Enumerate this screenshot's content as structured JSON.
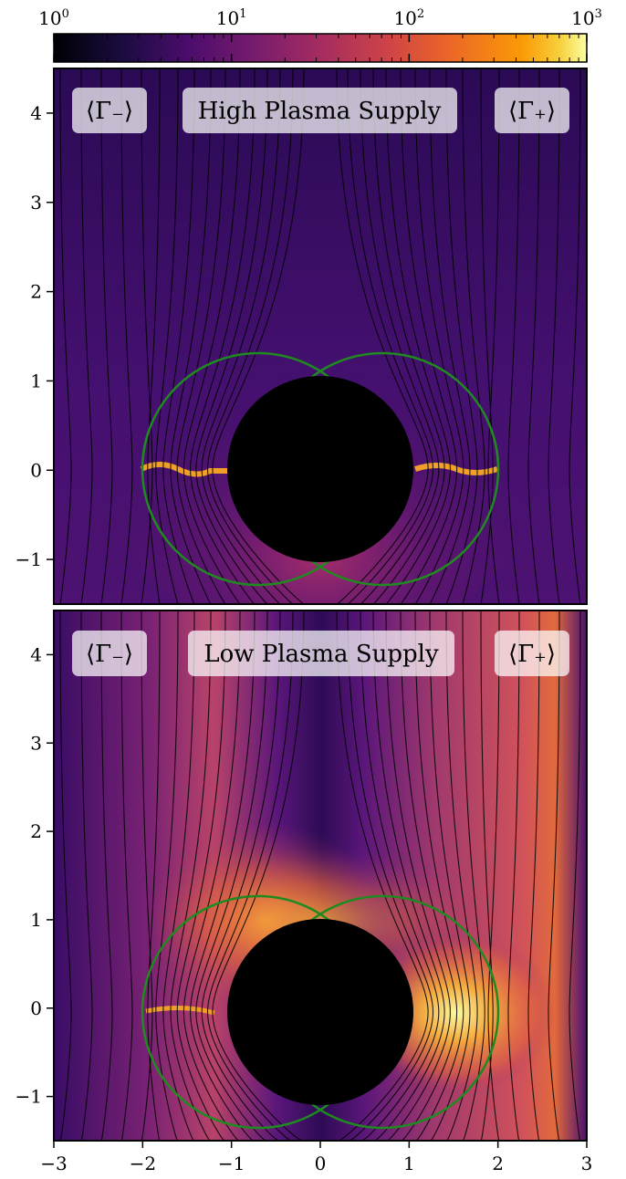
{
  "chart_data": [
    {
      "type": "colorbar",
      "scale": "log",
      "range": [
        1,
        1000
      ],
      "colormap": "inferno",
      "tick_labels": [
        {
          "base": "10",
          "exp": "0",
          "value": 1
        },
        {
          "base": "10",
          "exp": "1",
          "value": 10
        },
        {
          "base": "10",
          "exp": "2",
          "value": 100
        },
        {
          "base": "10",
          "exp": "3",
          "value": 1000
        }
      ]
    },
    {
      "type": "heatmap",
      "title": "High Plasma Supply",
      "left_label": "⟨Γ₋⟩",
      "right_label": "⟨Γ₊⟩",
      "xlim": [
        -3,
        3
      ],
      "ylim": [
        -1.5,
        4.5
      ],
      "yticks": [
        -1,
        0,
        1,
        2,
        3,
        4
      ],
      "ytick_labels": [
        "−1",
        "0",
        "1",
        "2",
        "3",
        "4"
      ],
      "black_disk_radius": 1.05,
      "green_circle_centers": [
        [
          -0.7,
          0
        ],
        [
          0.7,
          0
        ]
      ],
      "green_circle_radius": 1.3
    },
    {
      "type": "heatmap",
      "title": "Low Plasma Supply",
      "left_label": "⟨Γ₋⟩",
      "right_label": "⟨Γ₊⟩",
      "xlim": [
        -3,
        3
      ],
      "ylim": [
        -1.5,
        4.5
      ],
      "xticks": [
        -3,
        -2,
        -1,
        0,
        1,
        2,
        3
      ],
      "xtick_labels": [
        "−3",
        "−2",
        "−1",
        "0",
        "1",
        "2",
        "3"
      ],
      "yticks": [
        -1,
        0,
        1,
        2,
        3,
        4
      ],
      "ytick_labels": [
        "−1",
        "0",
        "1",
        "2",
        "3",
        "4"
      ],
      "black_disk_radius": 1.05,
      "green_circle_centers": [
        [
          -0.7,
          0
        ],
        [
          0.7,
          0
        ]
      ],
      "green_circle_radius": 1.3
    }
  ],
  "colors": {
    "background": "#3d0c66",
    "deep": "#1b0b3f",
    "mid": "#a0306b",
    "hot": "#e8603a",
    "bright": "#fbd24a",
    "field_lines": "#000000",
    "green_circles": "#1f8a1f",
    "disk": "#000000"
  }
}
